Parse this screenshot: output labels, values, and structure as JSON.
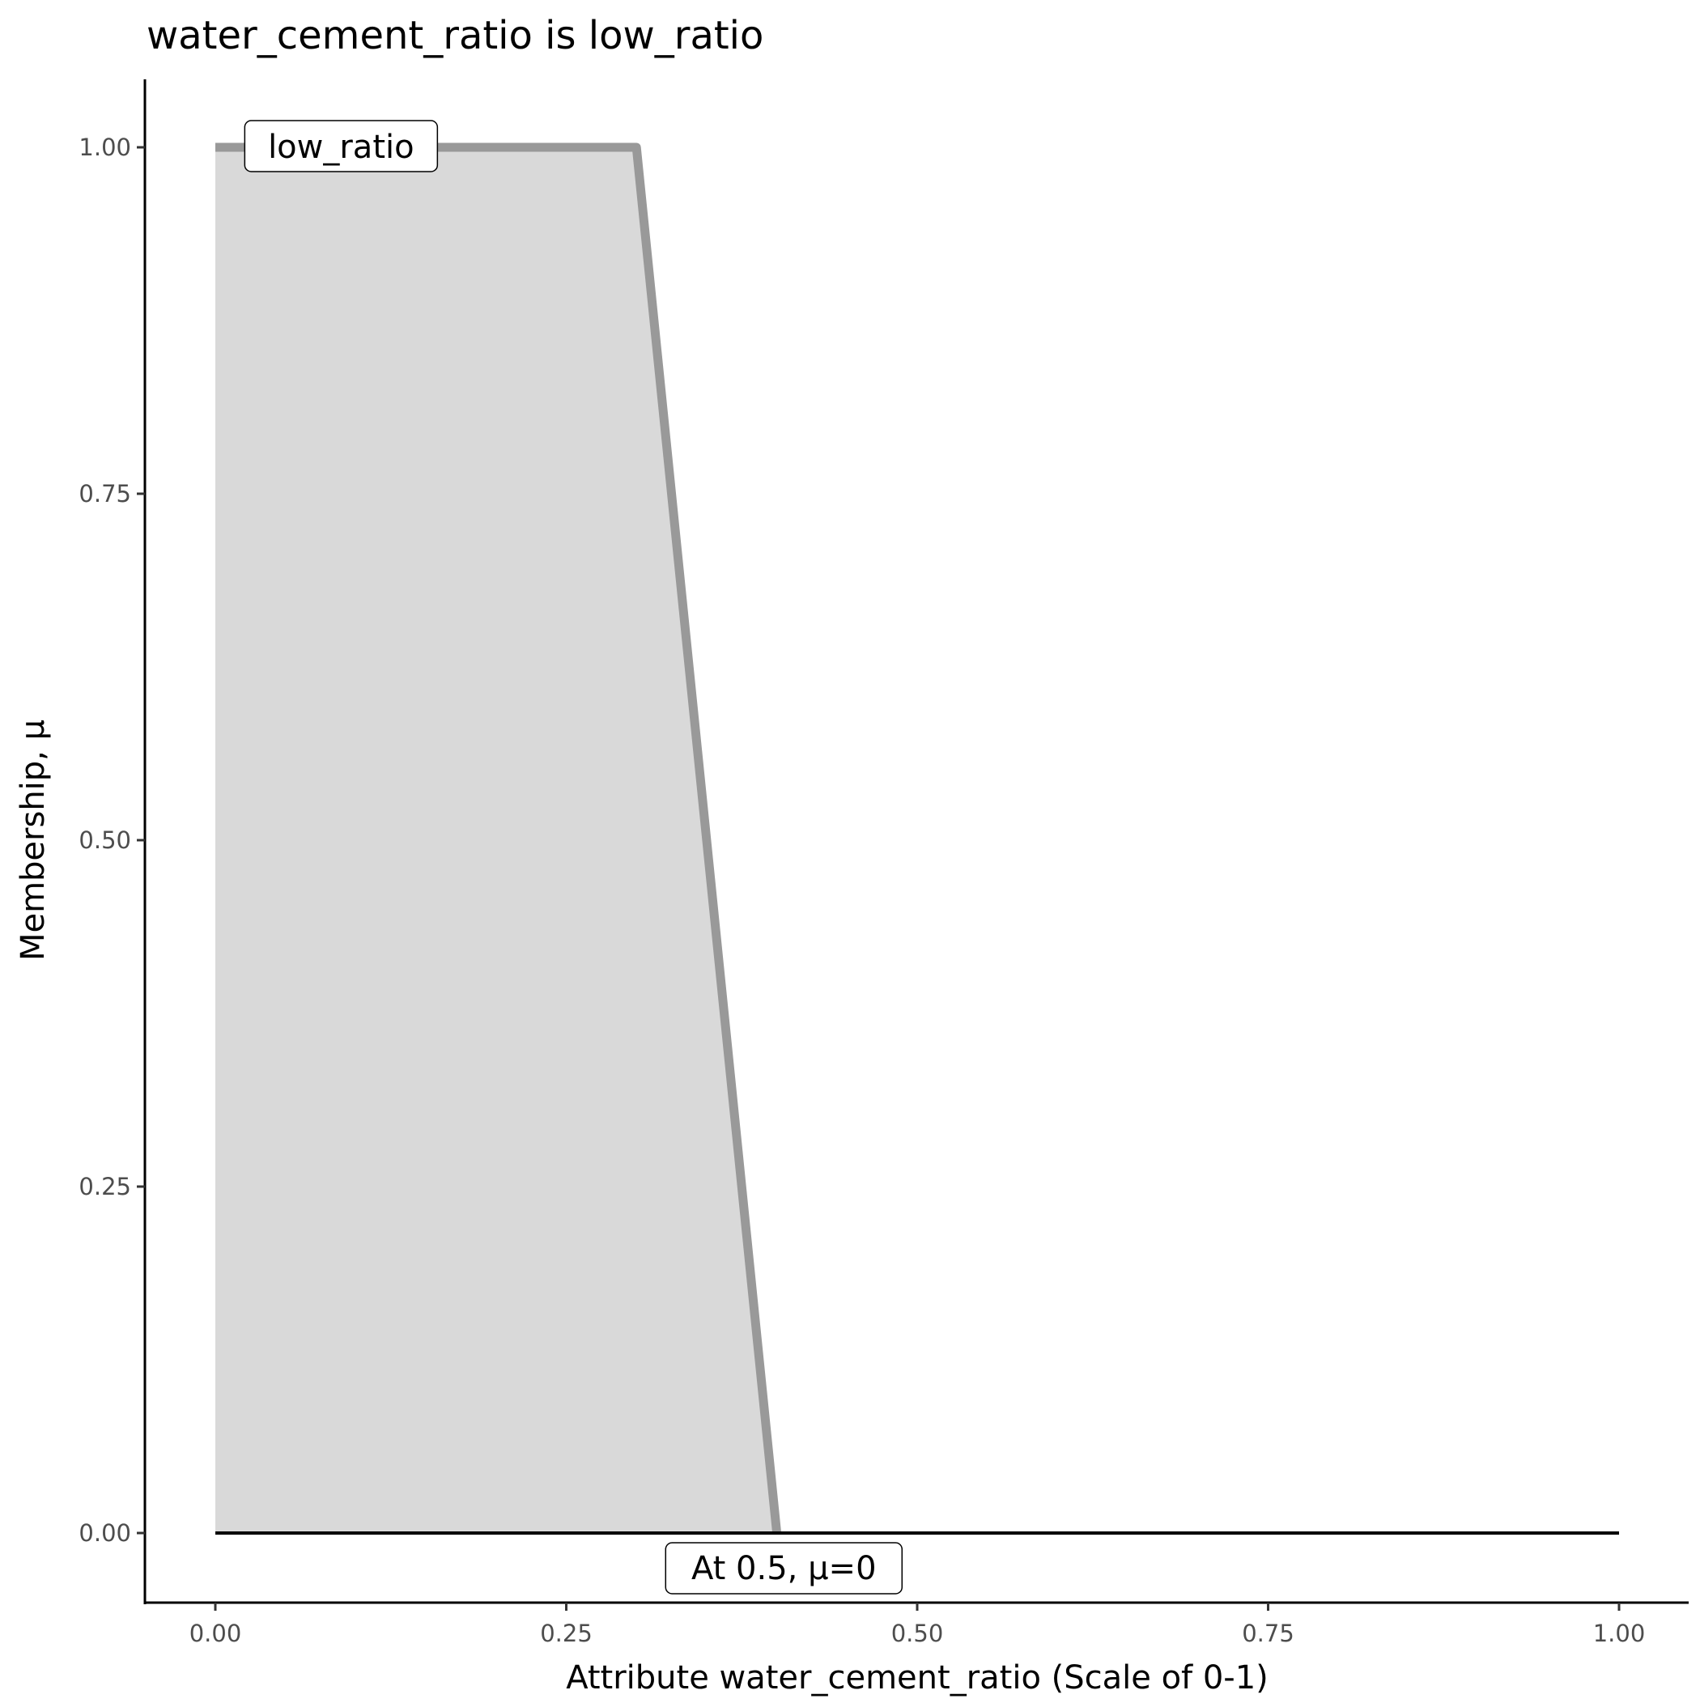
{
  "chart_data": {
    "type": "area",
    "title": "water_cement_ratio is low_ratio",
    "xlabel": "Attribute water_cement_ratio (Scale of 0-1)",
    "ylabel": "Membership, μ",
    "xlim": [
      -0.05,
      1.05
    ],
    "ylim": [
      -0.05,
      1.05
    ],
    "xticks": [
      "0.00",
      "0.25",
      "0.50",
      "0.75",
      "1.00"
    ],
    "yticks": [
      "0.00",
      "0.25",
      "0.50",
      "0.75",
      "1.00"
    ],
    "grid": false,
    "series": [
      {
        "name": "low_ratio",
        "x": [
          0,
          0.3,
          0.4
        ],
        "y": [
          1,
          1,
          0
        ],
        "color": "#999999",
        "fill": "#d9d9d9"
      }
    ],
    "baseline": {
      "x": [
        0,
        1
      ],
      "y": [
        0,
        0
      ],
      "color": "#000000"
    },
    "annotations": [
      {
        "text": "low_ratio",
        "x": 0.01,
        "y": 1
      },
      {
        "text": "At 0.5, μ=0",
        "x": 0.405,
        "y": -0.03
      }
    ]
  }
}
